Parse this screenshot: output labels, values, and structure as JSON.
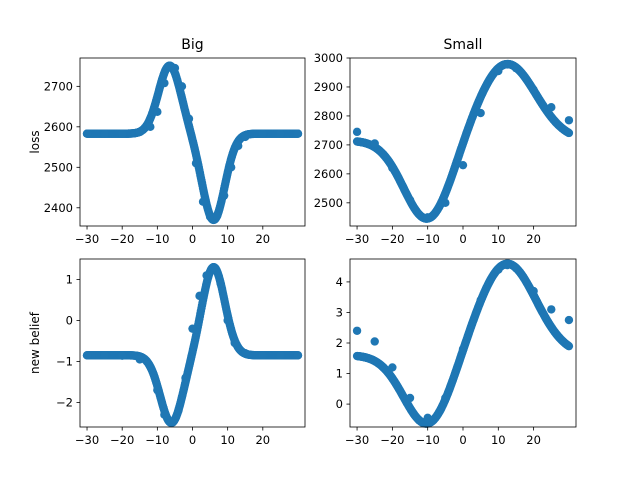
{
  "chart_data": [
    {
      "type": "scatter",
      "title": "Big",
      "xlabel": "",
      "ylabel": "loss",
      "xlim": [
        -32,
        32
      ],
      "ylim": [
        2355,
        2770
      ],
      "xticks": [
        -30,
        -20,
        -10,
        0,
        10,
        20
      ],
      "yticks": [
        2400,
        2500,
        2600,
        2700
      ],
      "grid": false,
      "color": "#1f77b4",
      "x_range": [
        -30,
        30
      ],
      "shape": {
        "base": 2583,
        "terms": [
          {
            "amp": 168,
            "center": -6.5,
            "width": 4.5
          },
          {
            "amp": -213,
            "center": 6.0,
            "width": 4.5
          }
        ]
      },
      "series": [
        {
          "x": [
            -30,
            -25,
            -20,
            -15,
            -12,
            -10,
            -8,
            -6.5,
            -5,
            -3,
            -1,
            1,
            3,
            5,
            6,
            7,
            9,
            11,
            13,
            15,
            20,
            25,
            30
          ],
          "y": [
            2583,
            2583,
            2583,
            2587,
            2600,
            2637,
            2708,
            2750,
            2745,
            2700,
            2620,
            2510,
            2415,
            2378,
            2372,
            2380,
            2430,
            2500,
            2553,
            2575,
            2583,
            2583,
            2583
          ]
        }
      ]
    },
    {
      "type": "scatter",
      "title": "Small",
      "xlabel": "",
      "ylabel": "",
      "xlim": [
        -32,
        32
      ],
      "ylim": [
        2420,
        3000
      ],
      "xticks": [
        -30,
        -20,
        -10,
        0,
        10,
        20
      ],
      "yticks": [
        2500,
        2600,
        2700,
        2800,
        2900,
        3000
      ],
      "grid": false,
      "color": "#1f77b4",
      "x_range": [
        -30,
        30
      ],
      "shape": {
        "base": 2715,
        "terms": [
          {
            "amp": -275,
            "center": -10,
            "width": 9.5
          },
          {
            "amp": 265,
            "center": 12.5,
            "width": 11.5
          }
        ]
      },
      "series": [
        {
          "x": [
            -30,
            -25,
            -20,
            -15,
            -10,
            -5,
            0,
            5,
            10,
            12.5,
            15,
            20,
            25,
            30
          ],
          "y": [
            2745,
            2705,
            2620,
            2510,
            2450,
            2500,
            2630,
            2810,
            2955,
            2978,
            2965,
            2890,
            2830,
            2785
          ]
        }
      ]
    },
    {
      "type": "scatter",
      "title": "",
      "xlabel": "",
      "ylabel": "new belief",
      "xlim": [
        -32,
        32
      ],
      "ylim": [
        -2.6,
        1.5
      ],
      "xticks": [
        -30,
        -20,
        -10,
        0,
        10,
        20
      ],
      "yticks": [
        -2,
        -1,
        0,
        1
      ],
      "grid": false,
      "color": "#1f77b4",
      "x_range": [
        -30,
        30
      ],
      "shape": {
        "base": -0.85,
        "terms": [
          {
            "amp": -1.65,
            "center": -6.0,
            "width": 4.5
          },
          {
            "amp": 2.15,
            "center": 6.0,
            "width": 4.5
          }
        ]
      },
      "series": [
        {
          "x": [
            -30,
            -25,
            -20,
            -15,
            -10,
            -8,
            -6,
            -4,
            -2,
            0,
            2,
            4,
            6,
            8,
            10,
            12,
            15,
            20,
            25,
            30
          ],
          "y": [
            -0.85,
            -0.85,
            -0.86,
            -0.95,
            -1.7,
            -2.3,
            -2.5,
            -2.2,
            -1.4,
            -0.2,
            0.6,
            1.1,
            1.3,
            0.9,
            0.0,
            -0.55,
            -0.8,
            -0.85,
            -0.85,
            -0.85
          ]
        }
      ]
    },
    {
      "type": "scatter",
      "title": "",
      "xlabel": "",
      "ylabel": "",
      "xlim": [
        -32,
        32
      ],
      "ylim": [
        -0.75,
        4.75
      ],
      "xticks": [
        -30,
        -20,
        -10,
        0,
        10,
        20
      ],
      "yticks": [
        0,
        1,
        2,
        3,
        4
      ],
      "grid": false,
      "color": "#1f77b4",
      "x_range": [
        -30,
        30
      ],
      "shape": {
        "base": 1.6,
        "terms": [
          {
            "amp": -2.3,
            "center": -10,
            "width": 9.5
          },
          {
            "amp": 3.0,
            "center": 12.5,
            "width": 11.5
          }
        ]
      },
      "series": [
        {
          "x": [
            -30,
            -25,
            -20,
            -15,
            -10,
            -5,
            0,
            5,
            10,
            12.5,
            15,
            20,
            25,
            30
          ],
          "y": [
            2.4,
            2.05,
            1.2,
            0.2,
            -0.45,
            0.2,
            1.8,
            3.4,
            4.4,
            4.55,
            4.45,
            3.7,
            3.1,
            2.75
          ]
        }
      ]
    }
  ]
}
